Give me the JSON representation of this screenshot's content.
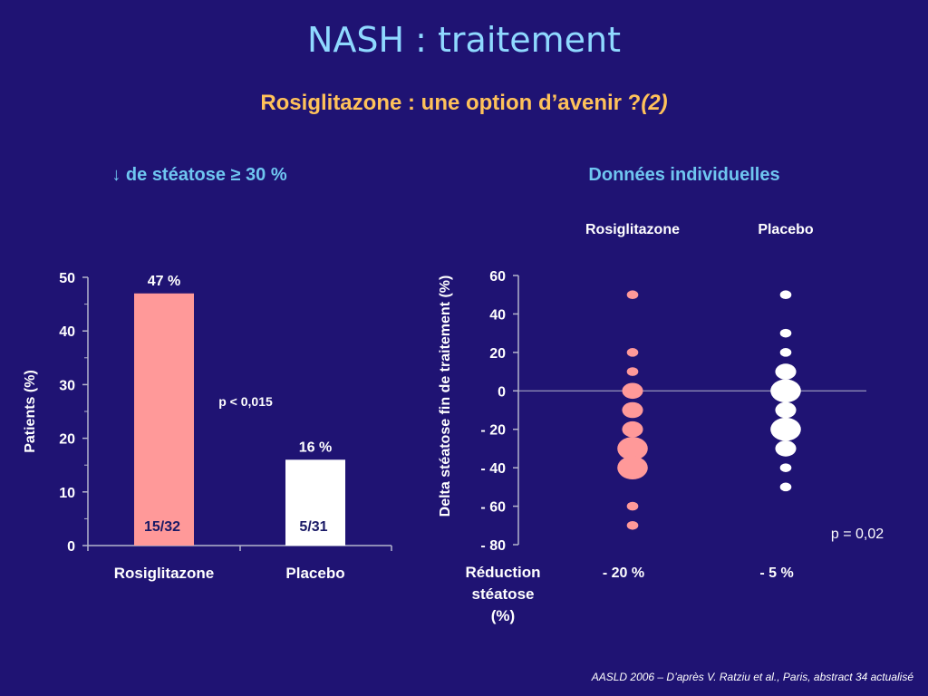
{
  "slide": {
    "title": "NASH : traitement",
    "subtitle": "Rosiglitazone : une option d’avenir ?",
    "subtitle_ref": "(2)",
    "citation": "AASLD 2006 – D’après V. Ratziu et al., Paris, abstract 34 actualisé"
  },
  "colors": {
    "background": "#1f1373",
    "rosiglitazone": "#ff9999",
    "placebo": "#ffffff",
    "axis": "#b4b4cc",
    "title": "#8fd9ff",
    "subtitle": "#ffc25a",
    "section": "#6fc6f0"
  },
  "chart_data": [
    {
      "type": "bar",
      "title": "↓ de stéatose ≥ 30 %",
      "ylabel": "Patients (%)",
      "xlabel": "",
      "ylim": [
        0,
        50
      ],
      "yticks": [
        "0",
        "10",
        "20",
        "30",
        "40",
        "50"
      ],
      "grid": false,
      "categories": [
        "Rosiglitazone",
        "Placebo"
      ],
      "values": [
        47,
        16
      ],
      "value_labels": [
        "47 %",
        "16 %"
      ],
      "count_labels": [
        "15/32",
        "5/31"
      ],
      "annotation": "p < 0,015"
    },
    {
      "type": "scatter",
      "title": "Données individuelles",
      "ylabel": "Delta stéatose fin de traitement (%)",
      "ylim": [
        -80,
        60
      ],
      "yticks": [
        "60",
        "40",
        "20",
        "0",
        "- 20",
        "- 40",
        "- 60",
        "- 80"
      ],
      "reference_line_y": 0,
      "grid": false,
      "groups": [
        "Rosiglitazone",
        "Placebo"
      ],
      "summary_label": "Réduction stéatose (%)",
      "summary_values": [
        "- 20 %",
        "- 5 %"
      ],
      "annotation": "p = 0,02",
      "series": [
        {
          "name": "Rosiglitazone",
          "points": [
            {
              "y": 50,
              "n": 1
            },
            {
              "y": 20,
              "n": 1
            },
            {
              "y": 10,
              "n": 1
            },
            {
              "y": 0,
              "n": 2
            },
            {
              "y": -10,
              "n": 2
            },
            {
              "y": -20,
              "n": 2
            },
            {
              "y": -30,
              "n": 3
            },
            {
              "y": -40,
              "n": 3
            },
            {
              "y": -60,
              "n": 1
            },
            {
              "y": -70,
              "n": 1
            }
          ]
        },
        {
          "name": "Placebo",
          "points": [
            {
              "y": 50,
              "n": 1
            },
            {
              "y": 30,
              "n": 1
            },
            {
              "y": 20,
              "n": 1
            },
            {
              "y": 10,
              "n": 2
            },
            {
              "y": 0,
              "n": 3
            },
            {
              "y": -10,
              "n": 2
            },
            {
              "y": -20,
              "n": 3
            },
            {
              "y": -30,
              "n": 2
            },
            {
              "y": -40,
              "n": 1
            },
            {
              "y": -50,
              "n": 1
            }
          ]
        }
      ]
    }
  ]
}
